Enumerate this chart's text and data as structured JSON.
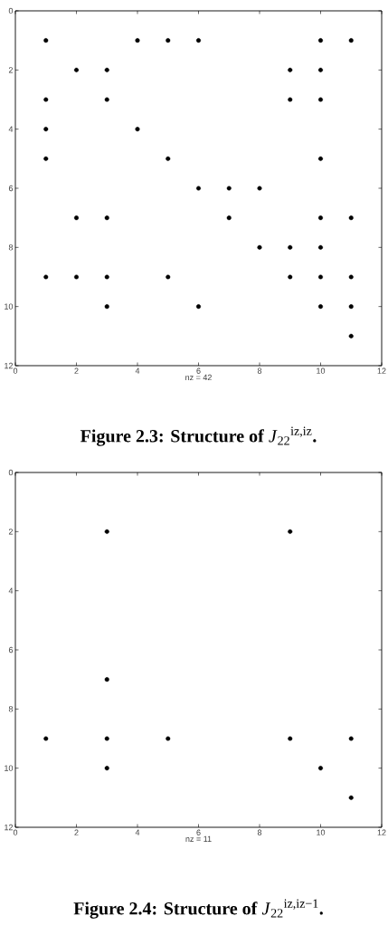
{
  "chart_data": [
    {
      "type": "scatter",
      "title": "**Figure 2.3: Structure of** *J*$_{22}$$^{iz,iz}$**.**",
      "xlabel": "nz = 42",
      "x": [
        1,
        4,
        5,
        6,
        10,
        11,
        2,
        3,
        9,
        10,
        1,
        3,
        9,
        10,
        1,
        4,
        1,
        5,
        10,
        6,
        7,
        8,
        2,
        3,
        7,
        10,
        11,
        8,
        9,
        10,
        1,
        2,
        3,
        5,
        9,
        10,
        11,
        3,
        6,
        10,
        11,
        11
      ],
      "values": [
        1,
        1,
        1,
        1,
        1,
        1,
        2,
        2,
        2,
        2,
        3,
        3,
        3,
        3,
        4,
        4,
        5,
        5,
        5,
        6,
        6,
        6,
        7,
        7,
        7,
        7,
        7,
        8,
        8,
        8,
        9,
        9,
        9,
        9,
        9,
        9,
        9,
        10,
        10,
        10,
        10,
        11
      ],
      "color": "#000000",
      "marker": "circle",
      "xlim": [
        0,
        12
      ],
      "ylim": [
        12,
        0
      ],
      "xticks": [
        0,
        2,
        4,
        6,
        8,
        10,
        12
      ],
      "yticks": [
        0,
        2,
        4,
        6,
        8,
        10,
        12
      ]
    },
    {
      "type": "scatter",
      "title": "**Figure 2.4: Structure of** *J*$_{22}$$^{iz,iz−1}$**.**",
      "xlabel": "nz = 11",
      "x": [
        3,
        9,
        3,
        1,
        3,
        5,
        9,
        11,
        3,
        10,
        11
      ],
      "values": [
        2,
        2,
        7,
        9,
        9,
        9,
        9,
        9,
        10,
        10,
        11
      ],
      "color": "#000000",
      "marker": "circle",
      "xlim": [
        0,
        12
      ],
      "ylim": [
        12,
        0
      ],
      "xticks": [
        0,
        2,
        4,
        6,
        8,
        10,
        12
      ],
      "yticks": [
        0,
        2,
        4,
        6,
        8,
        10,
        12
      ]
    }
  ]
}
